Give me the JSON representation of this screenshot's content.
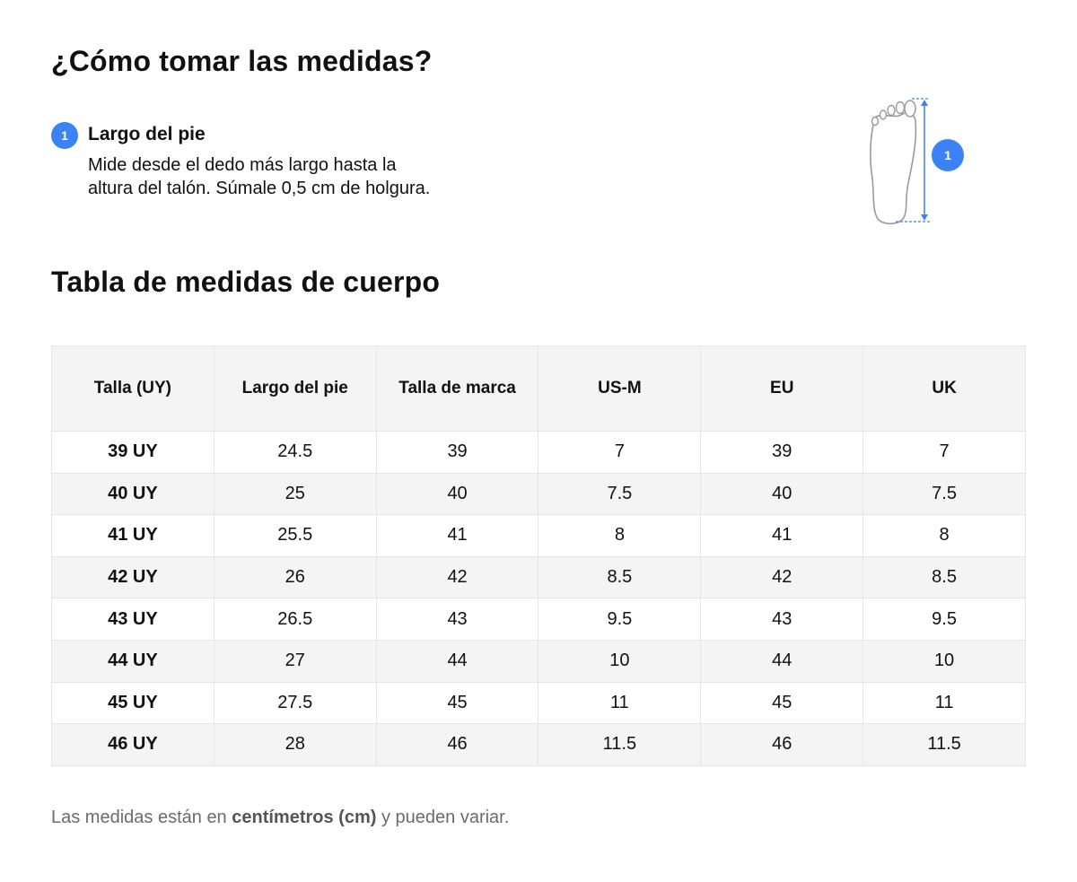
{
  "header": {
    "title": "¿Cómo tomar las medidas?"
  },
  "step": {
    "number": "1",
    "title": "Largo del pie",
    "description_line1": "Mide desde el dedo más largo hasta la",
    "description_line2": "altura del talón. Súmale 0,5 cm de holgura."
  },
  "illustration": {
    "icon": "foot-measure-icon",
    "badge": "1",
    "accent_color": "#3b82f6"
  },
  "table_section": {
    "title": "Tabla de medidas de cuerpo"
  },
  "table": {
    "columns": [
      "Talla (UY)",
      "Largo del pie",
      "Talla de marca",
      "US-M",
      "EU",
      "UK"
    ],
    "rows": [
      [
        "39 UY",
        "24.5",
        "39",
        "7",
        "39",
        "7"
      ],
      [
        "40 UY",
        "25",
        "40",
        "7.5",
        "40",
        "7.5"
      ],
      [
        "41 UY",
        "25.5",
        "41",
        "8",
        "41",
        "8"
      ],
      [
        "42 UY",
        "26",
        "42",
        "8.5",
        "42",
        "8.5"
      ],
      [
        "43 UY",
        "26.5",
        "43",
        "9.5",
        "43",
        "9.5"
      ],
      [
        "44 UY",
        "27",
        "44",
        "10",
        "44",
        "10"
      ],
      [
        "45 UY",
        "27.5",
        "45",
        "11",
        "45",
        "11"
      ],
      [
        "46 UY",
        "28",
        "46",
        "11.5",
        "46",
        "11.5"
      ]
    ]
  },
  "footer": {
    "note_prefix": "Las medidas están en ",
    "note_bold": "centímetros (cm)",
    "note_suffix": " y pueden variar."
  }
}
